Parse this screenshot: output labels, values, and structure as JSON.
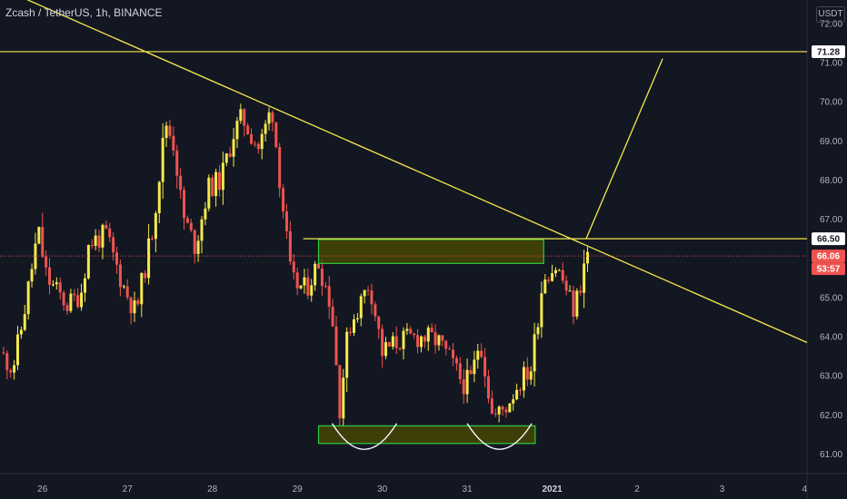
{
  "header": {
    "symbol_title": "Zcash / TetherUS, 1h, BINANCE"
  },
  "quote_currency": "USDT",
  "colors": {
    "background": "#131722",
    "bull": "#f5ea4b",
    "bear": "#ef5350",
    "trendline": "#f5ea4b",
    "zone_fill": "#4d4d00",
    "zone_border": "#2ecc40",
    "price_tag_resistance": "#ffffff",
    "price_tag_current": "#ef5350",
    "axis_text": "#b2b5be"
  },
  "price_labels": {
    "resistance_top": "71.28",
    "zone_top": "66.50",
    "current_price": "66.06",
    "countdown": "53:57"
  },
  "chart_data": {
    "type": "candlestick",
    "title": "Zcash / TetherUS, 1h, BINANCE",
    "x_ticks": [
      "26",
      "27",
      "28",
      "29",
      "30",
      "31",
      "2021",
      "2",
      "3",
      "4"
    ],
    "y_ticks": [
      "61.00",
      "62.00",
      "63.00",
      "64.00",
      "65.00",
      "66.00",
      "67.00",
      "68.00",
      "69.00",
      "70.00",
      "71.00",
      "72.00"
    ],
    "ylim": [
      60.5,
      72.6
    ],
    "xlim": [
      25.5,
      35.0
    ],
    "close_path": [
      [
        25.5,
        63.6
      ],
      [
        25.65,
        63.2
      ],
      [
        25.75,
        64.2
      ],
      [
        25.95,
        66.7
      ],
      [
        26.05,
        65.5
      ],
      [
        26.15,
        65.2
      ],
      [
        26.3,
        64.8
      ],
      [
        26.45,
        65.1
      ],
      [
        26.55,
        66.4
      ],
      [
        26.75,
        66.6
      ],
      [
        26.95,
        65.3
      ],
      [
        27.1,
        64.6
      ],
      [
        27.3,
        66.8
      ],
      [
        27.45,
        69.5
      ],
      [
        27.55,
        68.9
      ],
      [
        27.65,
        67.1
      ],
      [
        27.8,
        66.3
      ],
      [
        27.95,
        67.8
      ],
      [
        28.1,
        68.0
      ],
      [
        28.25,
        69.2
      ],
      [
        28.35,
        69.6
      ],
      [
        28.55,
        68.8
      ],
      [
        28.7,
        69.9
      ],
      [
        28.8,
        67.9
      ],
      [
        28.93,
        65.4
      ],
      [
        29.1,
        65.2
      ],
      [
        29.25,
        65.9
      ],
      [
        29.4,
        64.8
      ],
      [
        29.5,
        62.2
      ],
      [
        29.6,
        64.2
      ],
      [
        29.75,
        64.9
      ],
      [
        29.85,
        65.4
      ],
      [
        30.0,
        63.6
      ],
      [
        30.2,
        63.9
      ],
      [
        30.45,
        64.0
      ],
      [
        30.65,
        63.9
      ],
      [
        30.8,
        63.4
      ],
      [
        30.95,
        62.8
      ],
      [
        31.05,
        62.9
      ],
      [
        31.15,
        64.0
      ],
      [
        31.3,
        61.9
      ],
      [
        31.45,
        62.2
      ],
      [
        31.6,
        62.8
      ],
      [
        31.75,
        63.2
      ],
      [
        31.9,
        65.6
      ],
      [
        32.05,
        65.8
      ],
      [
        32.15,
        65.3
      ],
      [
        32.25,
        64.7
      ],
      [
        32.32,
        65.2
      ],
      [
        32.4,
        66.1
      ]
    ],
    "drawings": {
      "descending_trendline": {
        "from": [
          25.2,
          73.2
        ],
        "to": [
          35.0,
          63.85
        ]
      },
      "horizontal_resistance": {
        "price": 71.28
      },
      "horizontal_zone_top": {
        "price": 66.5,
        "from_x": 29.07
      },
      "projection_arrow": {
        "from": [
          32.4,
          66.5
        ],
        "to": [
          33.3,
          71.1
        ]
      },
      "resistance_zone": {
        "x": [
          29.25,
          31.9
        ],
        "y": [
          65.87,
          66.48
        ]
      },
      "support_zone": {
        "x": [
          29.25,
          31.8
        ],
        "y": [
          61.27,
          61.72
        ]
      },
      "double_bottom_arcs": [
        {
          "cx": 29.79,
          "y_rim": 61.78,
          "y_bottom": 61.12,
          "half_width": 0.38
        },
        {
          "cx": 31.38,
          "y_rim": 61.78,
          "y_bottom": 61.12,
          "half_width": 0.38
        }
      ]
    }
  }
}
